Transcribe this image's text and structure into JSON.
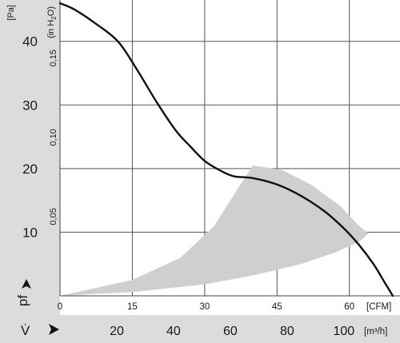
{
  "chart_data": {
    "type": "line",
    "y_unit": "[Pa]",
    "y2_unit": "(in H2O)",
    "x_unit": "[CFM]",
    "x2_unit": "[m³/h]",
    "y_symbol": "pf",
    "x_symbol": "V̇",
    "xlim": [
      0,
      70.5
    ],
    "ylim": [
      0,
      46.5
    ],
    "y_ticks": [
      "10",
      "20",
      "30",
      "40"
    ],
    "y2_ticks": [
      "0,05",
      "0,10",
      "0,15"
    ],
    "x_ticks": [
      "0",
      "15",
      "30",
      "45",
      "60"
    ],
    "x2_ticks": [
      "20",
      "40",
      "60",
      "80",
      "100"
    ],
    "grid": true,
    "series": [
      {
        "x": [
          0,
          3,
          7,
          12,
          16,
          20,
          24,
          27,
          30,
          33,
          36,
          40,
          45,
          50,
          55,
          59,
          62,
          65,
          67,
          69
        ],
        "y": [
          46,
          45,
          43,
          40,
          35.5,
          30.5,
          26,
          23.5,
          21.2,
          19.8,
          18.8,
          18.5,
          17.5,
          15.7,
          13.2,
          10.5,
          8,
          5,
          2.5,
          0
        ]
      }
    ],
    "shaded_region": {
      "x": [
        0,
        15,
        25,
        32,
        37,
        40,
        46,
        52,
        58,
        62,
        64,
        62,
        57,
        50,
        40,
        30,
        15,
        0
      ],
      "y": [
        0,
        2.5,
        6,
        11,
        17,
        20.5,
        19.8,
        17.5,
        14.2,
        11,
        9.8,
        8.5,
        6.8,
        5,
        3.2,
        1.8,
        0.6,
        0
      ]
    }
  }
}
